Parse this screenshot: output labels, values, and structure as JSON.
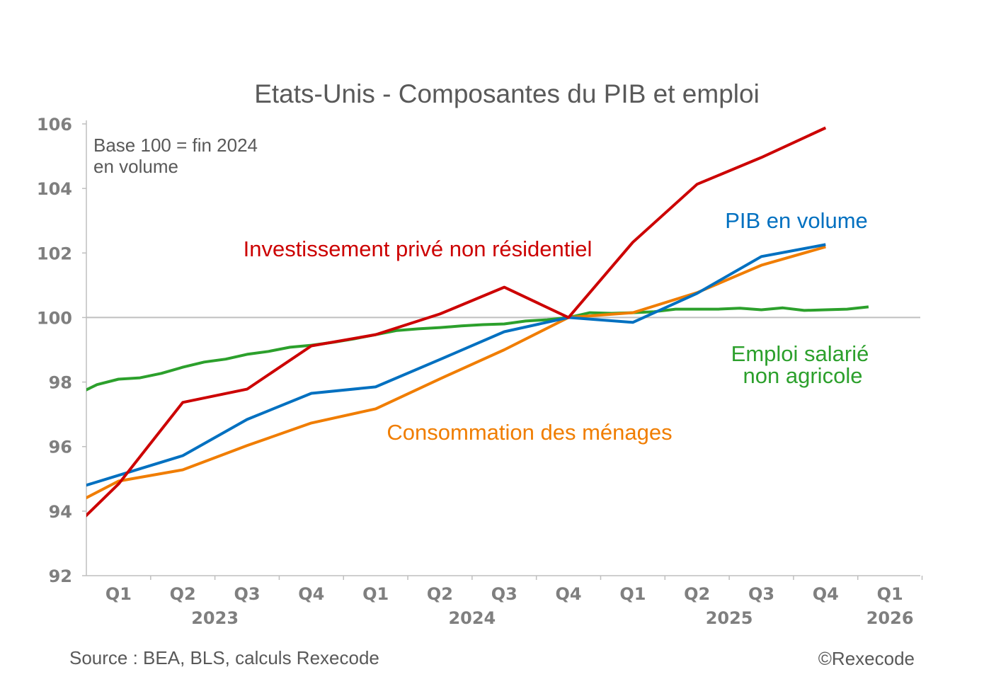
{
  "chart_data": {
    "type": "line",
    "title": "Etats-Unis - Composantes du PIB et emploi",
    "note": [
      "Base 100 = fin 2024",
      "en volume"
    ],
    "source": "Source : BEA, BLS, calculs Rexecode",
    "copyright": "©Rexecode",
    "ylim": [
      92,
      106
    ],
    "yticks": [
      92,
      94,
      96,
      98,
      100,
      102,
      104,
      106
    ],
    "reference_line": 100,
    "grid": false,
    "x_quarter_labels": [
      "Q1",
      "Q2",
      "Q3",
      "Q4",
      "Q1",
      "Q2",
      "Q3",
      "Q4",
      "Q1",
      "Q2",
      "Q3",
      "Q4",
      "Q1"
    ],
    "x_year_labels": [
      "2023",
      "2024",
      "2025",
      "2026"
    ],
    "xlim": [
      "2022-12",
      "2026-02"
    ],
    "series": [
      {
        "name": "Investissement privé non résidentiel",
        "color": "#cc0000",
        "frequency": "quarterly",
        "x": [
          "2022-Q4",
          "2023-Q1",
          "2023-Q2",
          "2023-Q3",
          "2023-Q4",
          "2024-Q1",
          "2024-Q2",
          "2024-Q3",
          "2024-Q4",
          "2025-Q1",
          "2025-Q2",
          "2025-Q3",
          "2025-Q4"
        ],
        "values": [
          92.9,
          94.84,
          97.37,
          97.78,
          99.12,
          99.47,
          100.11,
          100.94,
          100.0,
          102.33,
          104.13,
          104.96,
          105.88
        ]
      },
      {
        "name": "PIB en volume",
        "color": "#0070c0",
        "frequency": "quarterly",
        "x": [
          "2022-Q4",
          "2023-Q1",
          "2023-Q2",
          "2023-Q3",
          "2023-Q4",
          "2024-Q1",
          "2024-Q2",
          "2024-Q3",
          "2024-Q4",
          "2025-Q1",
          "2025-Q2",
          "2025-Q3",
          "2025-Q4"
        ],
        "values": [
          94.5,
          95.11,
          95.72,
          96.84,
          97.65,
          97.85,
          98.7,
          99.56,
          100.0,
          99.85,
          100.75,
          101.89,
          102.26
        ]
      },
      {
        "name": "Consommation des ménages",
        "color": "#f07d00",
        "frequency": "quarterly",
        "x": [
          "2022-Q4",
          "2023-Q1",
          "2023-Q2",
          "2023-Q3",
          "2023-Q4",
          "2024-Q1",
          "2024-Q2",
          "2024-Q3",
          "2024-Q4",
          "2025-Q1",
          "2025-Q2",
          "2025-Q3",
          "2025-Q4"
        ],
        "values": [
          93.9,
          94.93,
          95.28,
          96.03,
          96.73,
          97.17,
          98.1,
          99.0,
          100.0,
          100.15,
          100.77,
          101.62,
          102.19
        ]
      },
      {
        "name": "Emploi salarié non agricole",
        "name_lines": [
          "Emploi salarié",
          "non agricole"
        ],
        "color": "#2ca02c",
        "frequency": "monthly",
        "x": [
          "2022-12",
          "2023-01",
          "2023-02",
          "2023-03",
          "2023-04",
          "2023-05",
          "2023-06",
          "2023-07",
          "2023-08",
          "2023-09",
          "2023-10",
          "2023-11",
          "2023-12",
          "2024-01",
          "2024-02",
          "2024-03",
          "2024-04",
          "2024-05",
          "2024-06",
          "2024-07",
          "2024-08",
          "2024-09",
          "2024-10",
          "2024-11",
          "2024-12",
          "2025-01",
          "2025-02",
          "2025-03",
          "2025-04",
          "2025-05",
          "2025-06",
          "2025-07",
          "2025-08",
          "2025-09",
          "2025-10",
          "2025-11",
          "2025-12",
          "2026-01"
        ],
        "values": [
          97.6,
          97.92,
          98.09,
          98.13,
          98.27,
          98.46,
          98.62,
          98.71,
          98.86,
          98.95,
          99.08,
          99.14,
          99.23,
          99.34,
          99.47,
          99.6,
          99.65,
          99.69,
          99.74,
          99.78,
          99.8,
          99.89,
          99.93,
          100.0,
          100.15,
          100.13,
          100.15,
          100.18,
          100.26,
          100.26,
          100.26,
          100.29,
          100.24,
          100.3,
          100.22,
          100.24,
          100.26,
          100.33
        ]
      }
    ]
  }
}
